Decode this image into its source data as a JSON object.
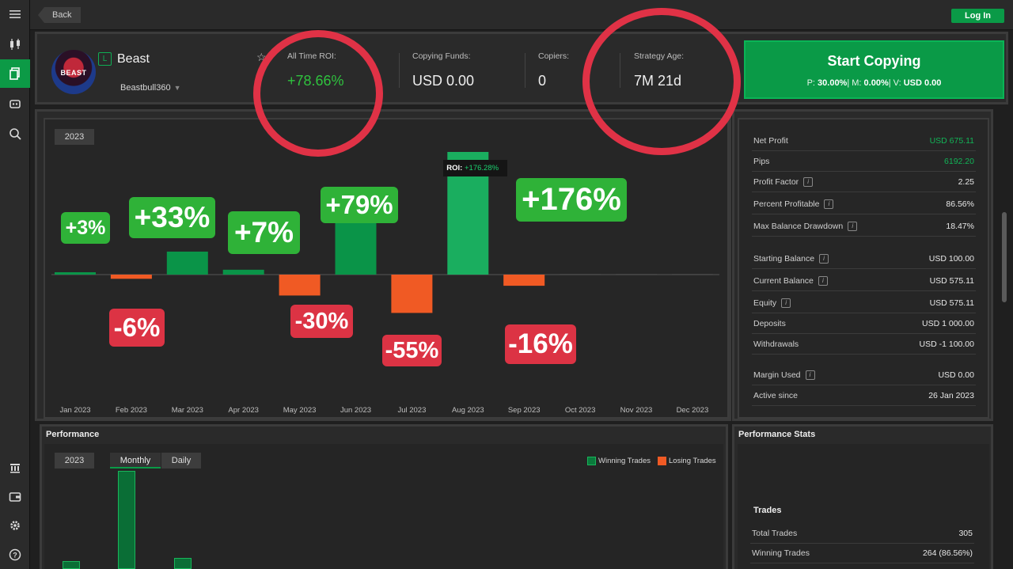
{
  "topbar": {
    "back_label": "Back",
    "login_label": "Log In"
  },
  "trader": {
    "badge": "L",
    "name": "Beast",
    "handle": "Beastbull360"
  },
  "stats": [
    {
      "label": "All Time ROI:",
      "value": "+78.66%"
    },
    {
      "label": "Copying Funds:",
      "value": "USD 0.00"
    },
    {
      "label": "Copiers:",
      "value": "0"
    },
    {
      "label": "Strategy Age:",
      "value": "7M 21d"
    }
  ],
  "start_copying": {
    "title": "Start Copying",
    "p_label": "P:",
    "p_value": "30.00%",
    "m_label": "| M:",
    "m_value": "0.00%",
    "v_label": "| V:",
    "v_value": "USD 0.00"
  },
  "chart_year": "2023",
  "chart_data": {
    "type": "bar",
    "categories": [
      "Jan 2023",
      "Feb 2023",
      "Mar 2023",
      "Apr 2023",
      "May 2023",
      "Jun 2023",
      "Jul 2023",
      "Aug 2023",
      "Sep 2023",
      "Oct 2023",
      "Nov 2023",
      "Dec 2023"
    ],
    "values": [
      3,
      -6,
      33,
      7,
      -30,
      79,
      -55,
      176,
      -16,
      0,
      0,
      0
    ],
    "annotations": [
      "+3%",
      "-6%",
      "+33%",
      "+7%",
      "-30%",
      "+79%",
      "-55%",
      "+176%",
      "-16%",
      "",
      "",
      ""
    ],
    "tooltip": {
      "key": "ROI:",
      "value": "+176.28%"
    },
    "colors": {
      "positive": "#0a9448",
      "positive_highlight": "#1aae5f",
      "negative": "#f05a24"
    }
  },
  "account_stats": [
    {
      "label": "Net Profit",
      "value": "USD 675.11",
      "info": false,
      "green": true
    },
    {
      "label": "Pips",
      "value": "6192.20",
      "info": false,
      "green": true
    },
    {
      "label": "Profit Factor",
      "value": "2.25",
      "info": true
    },
    {
      "label": "Percent Profitable",
      "value": "86.56%",
      "info": true
    },
    {
      "label": "Max Balance Drawdown",
      "value": "18.47%",
      "info": true
    },
    {
      "label": "Starting Balance",
      "value": "USD 100.00",
      "info": true
    },
    {
      "label": "Current Balance",
      "value": "USD 575.11",
      "info": true
    },
    {
      "label": "Equity",
      "value": "USD 575.11",
      "info": true
    },
    {
      "label": "Deposits",
      "value": "USD 1 000.00",
      "info": false
    },
    {
      "label": "Withdrawals",
      "value": "USD -1 100.00",
      "info": false
    },
    {
      "label": "Margin Used",
      "value": "USD 0.00",
      "info": true
    },
    {
      "label": "Active since",
      "value": "26 Jan 2023",
      "info": false
    }
  ],
  "performance": {
    "title": "Performance",
    "year": "2023",
    "tabs": [
      "Monthly",
      "Daily"
    ],
    "legend": [
      "Winning Trades",
      "Losing Trades"
    ]
  },
  "performance_stats": {
    "title": "Performance Stats",
    "section": "Trades",
    "rows": [
      {
        "label": "Total Trades",
        "value": "305"
      },
      {
        "label": "Winning Trades",
        "value": "264 (86.56%)"
      }
    ]
  }
}
